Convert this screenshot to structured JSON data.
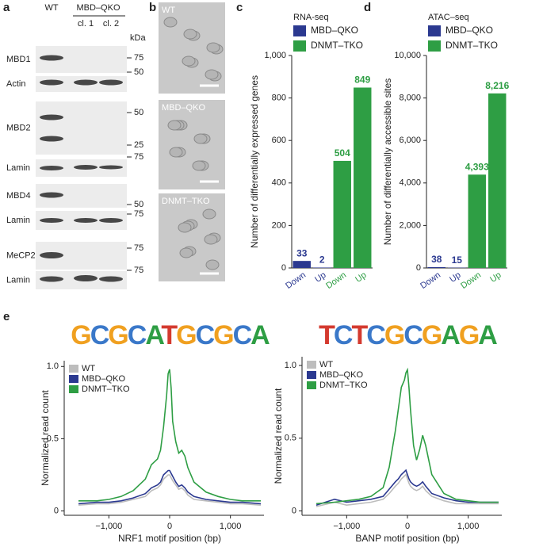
{
  "panel_a": {
    "label": "a",
    "wt": "WT",
    "group": "MBD–QKO",
    "clone1": "cl. 1",
    "clone2": "cl. 2",
    "unit": "kDa",
    "rows": [
      "MBD1",
      "Actin",
      "MBD2",
      "Lamin",
      "MBD4",
      "Lamin",
      "MeCP2",
      "Lamin"
    ],
    "markers": [
      75,
      50,
      50,
      25,
      75,
      50,
      75,
      75,
      75
    ]
  },
  "panel_b": {
    "label": "b",
    "images": [
      "WT",
      "MBD–QKO",
      "DNMT–TKO"
    ]
  },
  "chart_data": [
    {
      "type": "bar",
      "panel": "c",
      "title": "RNA-seq",
      "y_label": "Number of differentially expressed genes",
      "categories": [
        "Down",
        "Up",
        "Down",
        "Up"
      ],
      "series": [
        {
          "name": "MBD–QKO",
          "color": "#2b3990",
          "values": [
            33,
            2,
            null,
            null
          ]
        },
        {
          "name": "DNMT–TKO",
          "color": "#2e9e44",
          "values": [
            null,
            null,
            504,
            849
          ]
        }
      ],
      "ylim": [
        0,
        1000
      ],
      "yticks": [
        0,
        200,
        400,
        600,
        800,
        {
          "value": 1000,
          "label": "1,000"
        }
      ]
    },
    {
      "type": "bar",
      "panel": "d",
      "title": "ATAC–seq",
      "y_label": "Number of differentially accessible sites",
      "categories": [
        "Down",
        "Up",
        "Down",
        "Up"
      ],
      "series": [
        {
          "name": "MBD–QKO",
          "color": "#2b3990",
          "values": [
            38,
            15,
            null,
            null
          ]
        },
        {
          "name": "DNMT–TKO",
          "color": "#2e9e44",
          "values": [
            null,
            null,
            4393,
            8216
          ],
          "value_labels": [
            null,
            null,
            "4,393",
            "8,216"
          ]
        }
      ],
      "ylim": [
        0,
        10000
      ],
      "yticks": [
        0,
        {
          "value": 2000,
          "label": "2,000"
        },
        {
          "value": 4000,
          "label": "4,000"
        },
        {
          "value": 6000,
          "label": "6,000"
        },
        {
          "value": 8000,
          "label": "8,000"
        },
        {
          "value": 10000,
          "label": "10,000"
        }
      ]
    },
    {
      "type": "line",
      "panel": "e",
      "annotation": "GCGCATGCGCA",
      "x_label": "NRF1 motif position (bp)",
      "y_label": "Normalized read count",
      "x": [
        -1500,
        -1200,
        -1000,
        -800,
        -600,
        -400,
        -300,
        -200,
        -150,
        -100,
        -50,
        -25,
        0,
        25,
        50,
        100,
        150,
        200,
        250,
        300,
        400,
        600,
        800,
        1000,
        1200,
        1500
      ],
      "series": [
        {
          "name": "WT",
          "color": "#bdbdbd",
          "values": [
            0.04,
            0.05,
            0.05,
            0.06,
            0.08,
            0.1,
            0.14,
            0.16,
            0.18,
            0.22,
            0.24,
            0.25,
            0.25,
            0.23,
            0.21,
            0.18,
            0.15,
            0.16,
            0.14,
            0.11,
            0.08,
            0.07,
            0.06,
            0.05,
            0.05,
            0.04
          ]
        },
        {
          "name": "MBD–QKO",
          "color": "#2b3990",
          "values": [
            0.05,
            0.06,
            0.06,
            0.07,
            0.09,
            0.12,
            0.16,
            0.18,
            0.2,
            0.25,
            0.27,
            0.28,
            0.28,
            0.26,
            0.24,
            0.2,
            0.17,
            0.18,
            0.16,
            0.13,
            0.1,
            0.08,
            0.07,
            0.06,
            0.06,
            0.05
          ]
        },
        {
          "name": "DNMT–TKO",
          "color": "#2e9e44",
          "values": [
            0.07,
            0.07,
            0.08,
            0.1,
            0.14,
            0.22,
            0.32,
            0.36,
            0.42,
            0.58,
            0.8,
            0.95,
            0.98,
            0.85,
            0.62,
            0.48,
            0.4,
            0.42,
            0.38,
            0.3,
            0.2,
            0.13,
            0.1,
            0.08,
            0.07,
            0.07
          ]
        }
      ],
      "xlim": [
        -1500,
        1500
      ],
      "ylim": [
        -0.03,
        1.04
      ],
      "xticks": [
        {
          "value": -1000,
          "label": "−1,000"
        },
        0,
        {
          "value": 1000,
          "label": "1,000"
        }
      ],
      "yticks": [
        0,
        0.5,
        {
          "value": 1,
          "label": "1.0"
        }
      ]
    },
    {
      "type": "line",
      "panel": "",
      "annotation": "TCTCGCGAGA",
      "x_label": "BANP motif position (bp)",
      "y_label": "Normalized read count",
      "x": [
        -1500,
        -1200,
        -1000,
        -800,
        -600,
        -400,
        -300,
        -200,
        -150,
        -100,
        -50,
        -25,
        0,
        25,
        50,
        100,
        150,
        200,
        250,
        300,
        400,
        600,
        800,
        1000,
        1200,
        1500
      ],
      "series": [
        {
          "name": "WT",
          "color": "#bdbdbd",
          "values": [
            0.03,
            0.06,
            0.04,
            0.05,
            0.06,
            0.08,
            0.12,
            0.17,
            0.19,
            0.22,
            0.24,
            0.25,
            0.22,
            0.19,
            0.17,
            0.15,
            0.14,
            0.15,
            0.17,
            0.14,
            0.1,
            0.07,
            0.05,
            0.05,
            0.05,
            0.05
          ]
        },
        {
          "name": "MBD–QKO",
          "color": "#2b3990",
          "values": [
            0.04,
            0.08,
            0.06,
            0.07,
            0.08,
            0.1,
            0.15,
            0.2,
            0.22,
            0.25,
            0.27,
            0.28,
            0.25,
            0.22,
            0.2,
            0.18,
            0.17,
            0.18,
            0.2,
            0.17,
            0.12,
            0.09,
            0.07,
            0.06,
            0.06,
            0.06
          ]
        },
        {
          "name": "DNMT–TKO",
          "color": "#2e9e44",
          "values": [
            0.05,
            0.06,
            0.07,
            0.08,
            0.1,
            0.16,
            0.3,
            0.55,
            0.7,
            0.85,
            0.9,
            0.95,
            0.97,
            0.85,
            0.7,
            0.45,
            0.35,
            0.42,
            0.52,
            0.45,
            0.25,
            0.12,
            0.08,
            0.07,
            0.06,
            0.06
          ]
        }
      ],
      "xlim": [
        -1500,
        1500
      ],
      "ylim": [
        -0.03,
        1.06
      ],
      "xticks": [
        {
          "value": -1000,
          "label": "−1,000"
        },
        0,
        {
          "value": 1000,
          "label": "1,000"
        }
      ],
      "yticks": [
        0,
        0.5,
        {
          "value": 1,
          "label": "1.0"
        }
      ]
    }
  ]
}
